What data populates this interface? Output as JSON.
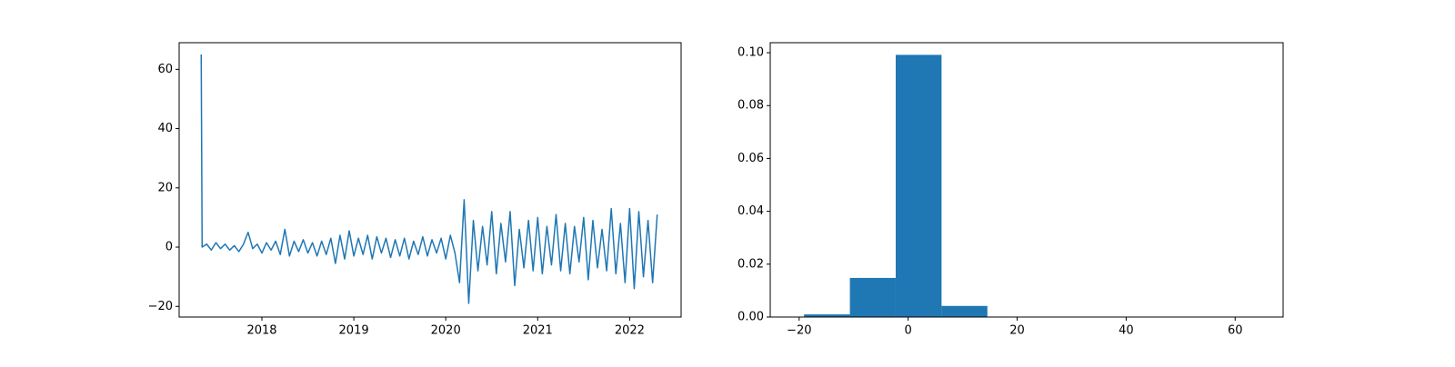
{
  "chart_data": [
    {
      "type": "line",
      "color": "#1f77b4",
      "x": [
        2017.34,
        2017.35,
        2017.4,
        2017.45,
        2017.5,
        2017.55,
        2017.6,
        2017.65,
        2017.7,
        2017.75,
        2017.8,
        2017.85,
        2017.9,
        2017.95,
        2018.0,
        2018.05,
        2018.1,
        2018.15,
        2018.2,
        2018.25,
        2018.3,
        2018.35,
        2018.4,
        2018.45,
        2018.5,
        2018.55,
        2018.6,
        2018.65,
        2018.7,
        2018.75,
        2018.8,
        2018.85,
        2018.9,
        2018.95,
        2019.0,
        2019.05,
        2019.1,
        2019.15,
        2019.2,
        2019.25,
        2019.3,
        2019.35,
        2019.4,
        2019.45,
        2019.5,
        2019.55,
        2019.6,
        2019.65,
        2019.7,
        2019.75,
        2019.8,
        2019.85,
        2019.9,
        2019.95,
        2020.0,
        2020.05,
        2020.1,
        2020.15,
        2020.2,
        2020.25,
        2020.3,
        2020.35,
        2020.4,
        2020.45,
        2020.5,
        2020.55,
        2020.6,
        2020.65,
        2020.7,
        2020.75,
        2020.8,
        2020.85,
        2020.9,
        2020.95,
        2021.0,
        2021.05,
        2021.1,
        2021.15,
        2021.2,
        2021.25,
        2021.3,
        2021.35,
        2021.4,
        2021.45,
        2021.5,
        2021.55,
        2021.6,
        2021.65,
        2021.7,
        2021.75,
        2021.8,
        2021.85,
        2021.9,
        2021.95,
        2022.0,
        2022.05,
        2022.1,
        2022.15,
        2022.2,
        2022.25,
        2022.3
      ],
      "values": [
        65,
        0,
        1,
        -1,
        1.5,
        -0.5,
        1,
        -1,
        0.5,
        -1.5,
        1,
        5,
        -0.5,
        1,
        -2,
        1.5,
        -1,
        2,
        -2.5,
        6,
        -3,
        2,
        -1.5,
        2.5,
        -2,
        1.5,
        -3,
        2,
        -2.5,
        3,
        -5.5,
        4,
        -4,
        5.5,
        -3,
        3,
        -2.5,
        4,
        -4,
        3.5,
        -2,
        3,
        -3.5,
        2.5,
        -3,
        3,
        -4,
        2,
        -2.5,
        3.5,
        -3,
        2.5,
        -2,
        3,
        -4,
        4,
        -2,
        -12,
        16,
        -19,
        9,
        -8,
        7,
        -6,
        12,
        -9,
        8,
        -5,
        12,
        -13,
        6,
        -7,
        9,
        -8,
        10,
        -9,
        7,
        -6,
        11,
        -8,
        8,
        -9,
        7,
        -5,
        10,
        -11,
        9,
        -7,
        6,
        -8,
        13,
        -9,
        8,
        -12,
        13,
        -14,
        12,
        -10,
        9,
        -12,
        11
      ],
      "xlim": [
        2017.1,
        2022.56
      ],
      "xticks": [
        2018,
        2019,
        2020,
        2021,
        2022
      ],
      "ylim": [
        -23.6,
        69
      ],
      "yticks": [
        {
          "value": -20,
          "label": "−20"
        },
        0,
        20,
        40,
        60
      ]
    },
    {
      "type": "histogram",
      "color": "#1f77b4",
      "bins": [
        -19.1,
        -10.69,
        -2.28,
        6.13,
        14.54,
        22.95,
        31.36,
        39.77,
        48.18,
        56.59,
        65.0
      ],
      "values": [
        0.001,
        0.0148,
        0.0992,
        0.0042,
        0,
        0,
        0,
        0,
        0,
        0.0001
      ],
      "xlim": [
        -25.3,
        68.8
      ],
      "xticks": [
        {
          "value": -20,
          "label": "−20"
        },
        0,
        20,
        40,
        60
      ],
      "ylim": [
        0,
        0.1038
      ],
      "yticks": [
        {
          "value": 0,
          "label": "0.00"
        },
        {
          "value": 0.02,
          "label": "0.02"
        },
        {
          "value": 0.04,
          "label": "0.04"
        },
        {
          "value": 0.06,
          "label": "0.06"
        },
        {
          "value": 0.08,
          "label": "0.08"
        },
        {
          "value": 0.1,
          "label": "0.10"
        }
      ]
    }
  ]
}
